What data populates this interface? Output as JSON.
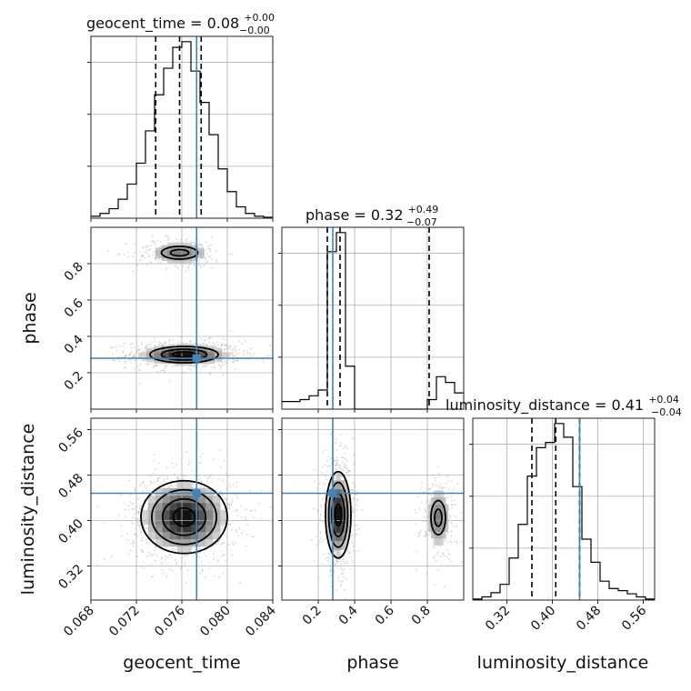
{
  "chart_data": {
    "type": "corner",
    "parameters": [
      "geocent_time",
      "phase",
      "luminosity_distance"
    ],
    "titles": [
      {
        "param": "geocent_time",
        "label": "geocent_time",
        "median": "0.08",
        "plus": "+0.00",
        "minus": "−0.00"
      },
      {
        "param": "phase",
        "label": "phase",
        "median": "0.32",
        "plus": "+0.49",
        "minus": "−0.07"
      },
      {
        "param": "luminosity_distance",
        "label": "luminosity_distance",
        "median": "0.41",
        "plus": "+0.04",
        "minus": "−0.04"
      }
    ],
    "truths": {
      "geocent_time": 0.0773,
      "phase": 0.28,
      "luminosity_distance": 0.448
    },
    "ranges": {
      "geocent_time": [
        0.068,
        0.084
      ],
      "phase": [
        0.0,
        1.0
      ],
      "luminosity_distance": [
        0.26,
        0.58
      ]
    },
    "ticks": {
      "geocent_time": {
        "values": [
          0.068,
          0.072,
          0.076,
          0.08,
          0.084
        ],
        "labels": [
          "0.068",
          "0.072",
          "0.076",
          "0.080",
          "0.084"
        ]
      },
      "phase_x": {
        "values": [
          0.2,
          0.4,
          0.6,
          0.8
        ],
        "labels": [
          "0.2",
          "0.4",
          "0.6",
          "0.8"
        ]
      },
      "phase_y": {
        "values": [
          0.2,
          0.4,
          0.6,
          0.8
        ],
        "labels": [
          "0.2",
          "0.4",
          "0.6",
          "0.8"
        ]
      },
      "luminosity_distance": {
        "values": [
          0.32,
          0.4,
          0.48,
          0.56
        ],
        "labels": [
          "0.32",
          "0.40",
          "0.48",
          "0.56"
        ]
      }
    },
    "marginals": {
      "geocent_time": {
        "quantiles": [
          0.0737,
          0.0758,
          0.0777
        ],
        "bin_edges": [
          0.068,
          0.0688,
          0.0696,
          0.0704,
          0.0712,
          0.072,
          0.0728,
          0.0736,
          0.0744,
          0.0752,
          0.076,
          0.0768,
          0.0776,
          0.0784,
          0.0792,
          0.08,
          0.0808,
          0.0816,
          0.0824,
          0.0832,
          0.084
        ],
        "counts": [
          2,
          5,
          10,
          20,
          36,
          58,
          92,
          130,
          158,
          180,
          186,
          155,
          122,
          88,
          52,
          28,
          12,
          5,
          2,
          1
        ]
      },
      "phase": {
        "quantiles": [
          0.25,
          0.32,
          0.81
        ],
        "bin_edges": [
          0.0,
          0.05,
          0.1,
          0.15,
          0.2,
          0.25,
          0.3,
          0.35,
          0.4,
          0.45,
          0.5,
          0.55,
          0.6,
          0.65,
          0.7,
          0.75,
          0.8,
          0.85,
          0.9,
          0.95,
          1.0
        ],
        "counts": [
          8,
          8,
          10,
          14,
          20,
          165,
          185,
          45,
          0,
          0,
          0,
          0,
          0,
          0,
          0,
          0,
          10,
          34,
          28,
          17
        ]
      },
      "luminosity_distance": {
        "quantiles": [
          0.364,
          0.406,
          0.448
        ],
        "bin_edges": [
          0.26,
          0.276,
          0.292,
          0.308,
          0.324,
          0.34,
          0.356,
          0.372,
          0.388,
          0.404,
          0.42,
          0.436,
          0.452,
          0.468,
          0.484,
          0.5,
          0.516,
          0.532,
          0.548,
          0.564,
          0.58
        ],
        "counts": [
          1,
          3,
          7,
          15,
          40,
          72,
          118,
          145,
          150,
          168,
          155,
          108,
          58,
          36,
          18,
          11,
          9,
          6,
          3,
          1
        ]
      }
    },
    "joint": [
      {
        "x": "geocent_time",
        "y": "phase",
        "modes": [
          {
            "cx": 0.0762,
            "cy": 0.3,
            "sx": 0.002,
            "sy": 0.03,
            "weight": 0.78
          },
          {
            "cx": 0.0758,
            "cy": 0.86,
            "sx": 0.0016,
            "sy": 0.035,
            "weight": 0.22
          }
        ],
        "contour_levels": [
          0.5,
          1.0,
          1.5
        ]
      },
      {
        "x": "geocent_time",
        "y": "luminosity_distance",
        "modes": [
          {
            "cx": 0.0762,
            "cy": 0.406,
            "sx": 0.0019,
            "sy": 0.032,
            "weight": 1.0
          }
        ],
        "contour_levels": [
          0.5,
          1.0,
          1.5,
          2.0
        ]
      },
      {
        "x": "phase",
        "y": "luminosity_distance",
        "modes": [
          {
            "cx": 0.31,
            "cy": 0.41,
            "sx": 0.035,
            "sy": 0.038,
            "weight": 0.78
          },
          {
            "cx": 0.86,
            "cy": 0.405,
            "sx": 0.04,
            "sy": 0.03,
            "weight": 0.22
          }
        ],
        "contour_levels": [
          0.5,
          1.0,
          1.5,
          2.0
        ]
      }
    ]
  }
}
